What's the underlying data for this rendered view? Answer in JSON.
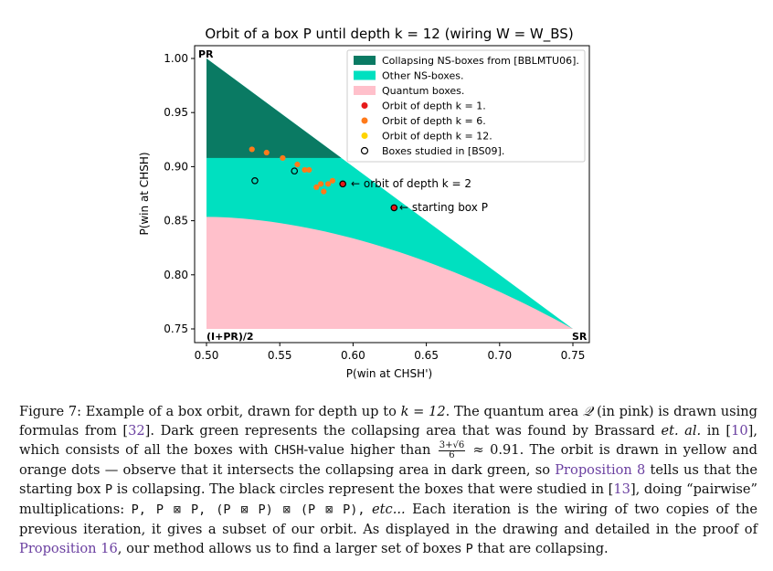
{
  "figure": {
    "title": "Orbit of a box P until depth k = 12 (wiring W = W_BS)",
    "corner_labels": {
      "pr": "PR",
      "mid": "(I+PR)/2",
      "sr": "SR"
    },
    "annotations": {
      "depth2": "← orbit of depth k = 2",
      "start": "← starting box P"
    },
    "legend": [
      {
        "label": "Collapsing NS-boxes from [BBLMTU06].",
        "color": "#0a7a63",
        "kind": "patch"
      },
      {
        "label": "Other NS-boxes.",
        "color": "#00e0c0",
        "kind": "patch"
      },
      {
        "label": "Quantum boxes.",
        "color": "#ffc0cb",
        "kind": "patch"
      },
      {
        "label": "Orbit of depth k = 1.",
        "color": "#e61a1a",
        "kind": "dot"
      },
      {
        "label": "Orbit of depth k = 6.",
        "color": "#ff7a1a",
        "kind": "dot"
      },
      {
        "label": "Orbit of depth k = 12.",
        "color": "#ffd400",
        "kind": "dot"
      },
      {
        "label": "Boxes studied in [BS09].",
        "color": "#000000",
        "kind": "circle"
      }
    ]
  },
  "chart_data": {
    "type": "scatter",
    "title": "Orbit of a box P until depth k = 12 (wiring W = W_BS)",
    "xlabel": "P(win at CHSH')",
    "ylabel": "P(win at CHSH)",
    "xlim": [
      0.5,
      0.75
    ],
    "ylim": [
      0.745,
      1.0
    ],
    "xticks": [
      "0.50",
      "0.55",
      "0.60",
      "0.65",
      "0.70",
      "0.75"
    ],
    "yticks": [
      "0.75",
      "0.80",
      "0.85",
      "0.90",
      "0.95",
      "1.00"
    ],
    "regions": {
      "ns_triangle": [
        [
          0.5,
          1.0
        ],
        [
          0.75,
          0.75
        ],
        [
          0.5,
          0.75
        ]
      ],
      "collapsing_cutoff": 0.908,
      "quantum_top": 0.8536
    },
    "series": [
      {
        "name": "Orbit of depth k = 1.",
        "color": "#e61a1a",
        "points": [
          [
            0.628,
            0.862
          ],
          [
            0.593,
            0.884
          ]
        ]
      },
      {
        "name": "Orbit of depth k = 6.",
        "color": "#ff7a1a",
        "bands": {
          "count": 14,
          "start": [
            0.502,
            0.909
          ],
          "step": [
            0.0022,
            -0.0037
          ],
          "along": [
            0.0072,
            -0.0062
          ],
          "length": 16,
          "cut": [
            0.585,
            0.97
          ]
        },
        "points": [
          [
            0.531,
            0.916
          ],
          [
            0.541,
            0.913
          ],
          [
            0.552,
            0.908
          ],
          [
            0.562,
            0.902
          ],
          [
            0.567,
            0.897
          ],
          [
            0.57,
            0.897
          ],
          [
            0.575,
            0.881
          ],
          [
            0.578,
            0.884
          ],
          [
            0.58,
            0.877
          ],
          [
            0.583,
            0.884
          ],
          [
            0.586,
            0.887
          ]
        ]
      },
      {
        "name": "Orbit of depth k = 12.",
        "color": "#ffd400",
        "bands": {
          "count": 10,
          "start": [
            0.5,
            0.89
          ],
          "step": [
            0.0025,
            -0.0043
          ],
          "along": [
            0.0072,
            -0.0062
          ],
          "length": 16,
          "cut": [
            0.56,
            0.96
          ]
        }
      }
    ],
    "bs09_boxes": [
      [
        0.533,
        0.887
      ],
      [
        0.56,
        0.896
      ],
      [
        0.593,
        0.884
      ],
      [
        0.628,
        0.862
      ]
    ]
  },
  "caption": {
    "s1": "Figure 7: Example of a box orbit, drawn for depth up to ",
    "k12": "k = 12",
    "s2": ". The quantum area ",
    "Q": "𝒬",
    "s3": " (in pink) is drawn using formulas from [",
    "ref32": "32",
    "s4": "]. Dark green represents the collapsing area that was found by Brassard ",
    "etal": "et. al.",
    "s5": " in [",
    "ref10": "10",
    "s6": "], which consists of all the boxes with ",
    "chsh": "CHSH",
    "s7": "-value higher than ",
    "frac_num": "3+√6",
    "frac_den": "6",
    "s8": " ≈ 0.91. The orbit is drawn in yellow and orange dots — observe that it intersects the collapsing area in dark green, so ",
    "prop8": "Proposition 8",
    "s9": " tells us that the starting box ",
    "P1": "P",
    "s10": " is collapsing. The black circles represent the boxes that were studied in [",
    "ref13": "13",
    "s11": "], doing “pairwise” multiplications: ",
    "products": "P, P ⊠ P, (P ⊠ P) ⊠ (P ⊠ P),",
    "s12": " ",
    "etc": "etc...",
    "s13": " Each iteration is the wiring of two copies of the previous iteration, it gives a subset of our orbit. As displayed in the drawing and detailed in the proof of ",
    "prop16": "Proposition 16",
    "s14": ", our method allows us to find a larger set of boxes ",
    "P2": "P",
    "s15": " that are collapsing."
  }
}
